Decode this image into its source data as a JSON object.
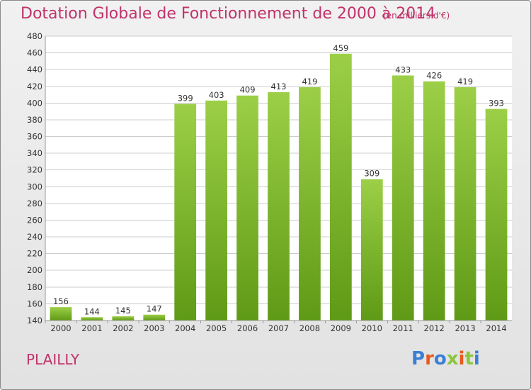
{
  "chart_data": {
    "type": "bar",
    "title": "Dotation Globale de Fonctionnement de 2000 à 2014",
    "subtitle": "(en milliers d'€)",
    "categories": [
      "2000",
      "2001",
      "2002",
      "2003",
      "2004",
      "2005",
      "2006",
      "2007",
      "2008",
      "2009",
      "2010",
      "2011",
      "2012",
      "2013",
      "2014"
    ],
    "values": [
      156,
      144,
      145,
      147,
      399,
      403,
      409,
      413,
      419,
      459,
      309,
      433,
      426,
      419,
      393
    ],
    "ylim": [
      140,
      480
    ],
    "yticks": [
      140,
      160,
      180,
      200,
      220,
      240,
      260,
      280,
      300,
      320,
      340,
      360,
      380,
      400,
      420,
      440,
      460,
      480
    ],
    "grid": true,
    "bar_color_top": "#9ccf47",
    "bar_color_bottom": "#5f9a16"
  },
  "footer": {
    "commune": "PLAILLY",
    "logo_text": "Proxiti"
  },
  "colors": {
    "title": "#c0336a",
    "logo": [
      "#3b7fd4",
      "#e85a1f",
      "#3b7fd4",
      "#8cc63f",
      "#e85a1f",
      "#8cc63f",
      "#3b7fd4"
    ]
  }
}
